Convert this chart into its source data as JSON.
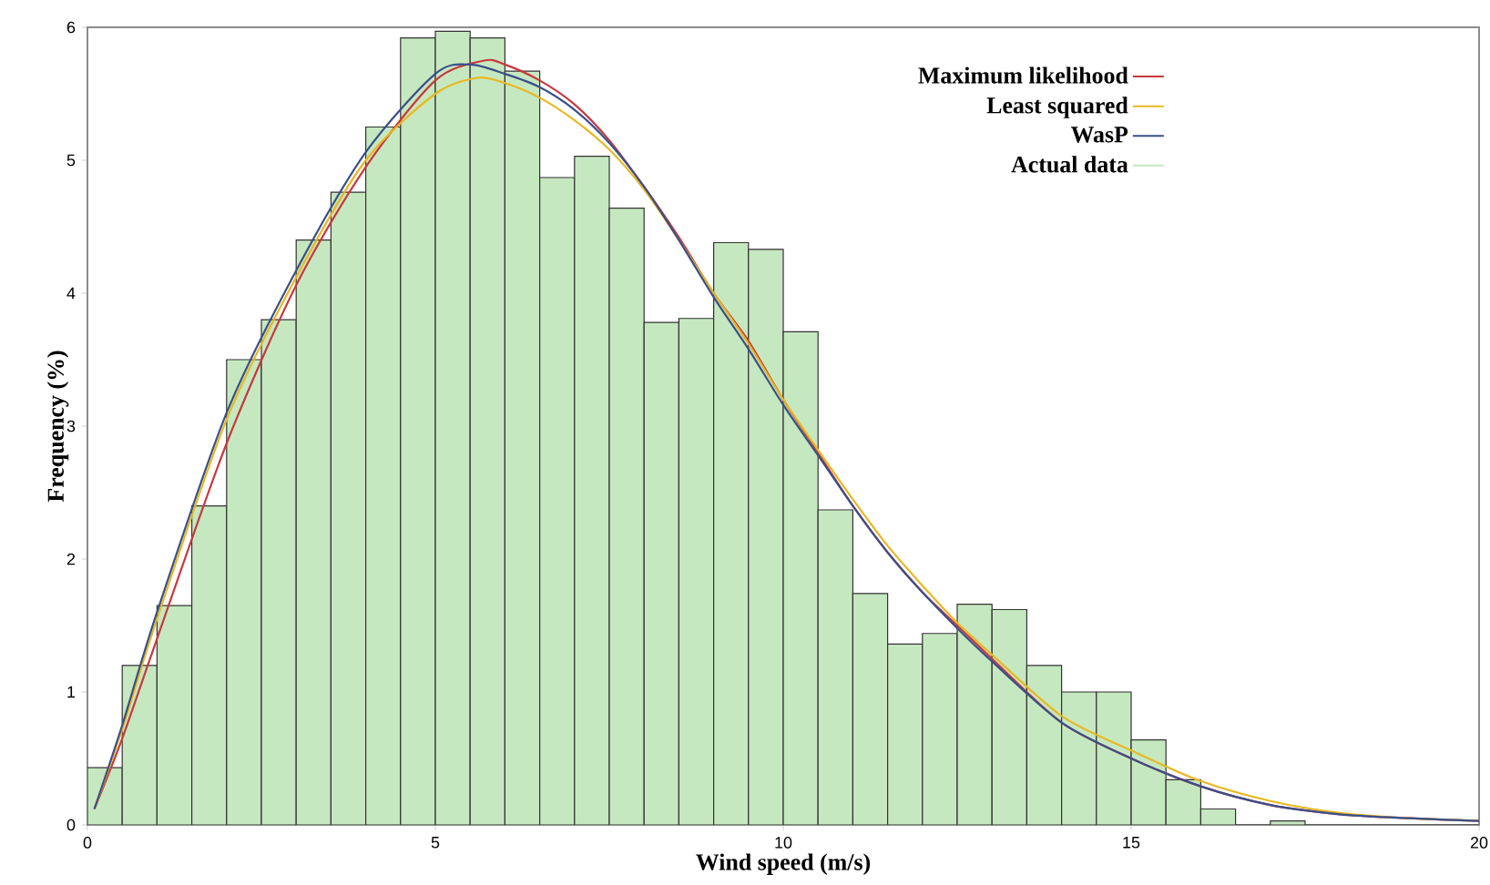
{
  "chart_data": {
    "type": "histogram",
    "xlabel": "Wind speed (m/s)",
    "ylabel": "Frequency (%)",
    "xlim": [
      0,
      20
    ],
    "ylim": [
      0,
      6
    ],
    "xticks": [
      0,
      5,
      10,
      15,
      20
    ],
    "yticks": [
      0,
      1,
      2,
      3,
      4,
      5,
      6
    ],
    "grid": false,
    "legend": "top right",
    "marker": "none",
    "line_style": "solid",
    "series": [
      {
        "type": "line",
        "name": "Maximum likelihood",
        "color": "#c8383e",
        "x": [
          0.1,
          0.5,
          1,
          2,
          3,
          4,
          5,
          5.7,
          6,
          6.5,
          7,
          7.5,
          8,
          8.5,
          9,
          9.5,
          10,
          10.5,
          11,
          11.5,
          12,
          12.5,
          13,
          14,
          15,
          16,
          17,
          18,
          19,
          20
        ],
        "values": [
          0.12,
          0.65,
          1.4,
          2.87,
          4.06,
          4.95,
          5.6,
          5.75,
          5.72,
          5.6,
          5.42,
          5.15,
          4.8,
          4.42,
          4.0,
          3.64,
          3.2,
          2.8,
          2.4,
          2.05,
          1.75,
          1.5,
          1.25,
          0.77,
          0.5,
          0.29,
          0.15,
          0.08,
          0.05,
          0.03
        ]
      },
      {
        "type": "line",
        "name": "Least squared",
        "color": "#e8b820",
        "x": [
          0.1,
          0.5,
          1,
          2,
          3,
          4,
          5,
          5.6,
          6,
          6.5,
          7,
          7.5,
          8,
          8.5,
          9,
          9.5,
          10,
          10.5,
          11,
          11.5,
          12,
          12.5,
          13,
          14,
          15,
          16,
          17,
          18,
          19,
          20
        ],
        "values": [
          0.12,
          0.72,
          1.55,
          3.05,
          4.12,
          5.0,
          5.5,
          5.62,
          5.58,
          5.47,
          5.3,
          5.08,
          4.78,
          4.4,
          4.0,
          3.62,
          3.2,
          2.82,
          2.45,
          2.1,
          1.8,
          1.52,
          1.28,
          0.82,
          0.56,
          0.33,
          0.18,
          0.09,
          0.05,
          0.03
        ]
      },
      {
        "type": "line",
        "name": "WasP",
        "color": "#3a4f8a",
        "x": [
          0.1,
          0.5,
          1,
          2,
          3,
          4,
          5,
          5.5,
          6,
          6.5,
          7,
          7.5,
          8,
          8.5,
          9,
          9.5,
          10,
          10.5,
          11,
          11.5,
          12,
          12.5,
          13,
          14,
          15,
          16,
          17,
          18,
          19,
          20
        ],
        "values": [
          0.12,
          0.75,
          1.6,
          3.1,
          4.17,
          5.06,
          5.65,
          5.72,
          5.65,
          5.55,
          5.38,
          5.13,
          4.8,
          4.4,
          3.97,
          3.58,
          3.16,
          2.78,
          2.4,
          2.05,
          1.75,
          1.48,
          1.23,
          0.77,
          0.5,
          0.29,
          0.15,
          0.08,
          0.05,
          0.03
        ]
      },
      {
        "name": "Actual data",
        "color": "#c6e8c0",
        "bins": [
          0,
          0.5,
          1,
          1.5,
          2,
          2.5,
          3,
          3.5,
          4,
          4.5,
          5,
          5.5,
          6,
          6.5,
          7,
          7.5,
          8,
          8.5,
          9,
          9.5,
          10,
          10.5,
          11,
          11.5,
          12,
          12.5,
          13,
          13.5,
          14,
          14.5,
          15,
          15.5,
          16,
          16.5,
          17,
          17.5,
          18,
          18.5,
          19,
          19.5,
          20
        ],
        "values": [
          0.43,
          1.2,
          1.65,
          2.4,
          3.5,
          3.8,
          4.4,
          4.76,
          5.25,
          5.92,
          5.97,
          5.92,
          5.67,
          4.87,
          5.03,
          4.64,
          3.78,
          3.81,
          4.38,
          4.33,
          3.71,
          2.37,
          1.74,
          1.36,
          1.44,
          1.66,
          1.62,
          1.2,
          1.0,
          1.0,
          0.64,
          0.34,
          0.12,
          0,
          0.03,
          0,
          0,
          0,
          0,
          0
        ]
      }
    ]
  }
}
